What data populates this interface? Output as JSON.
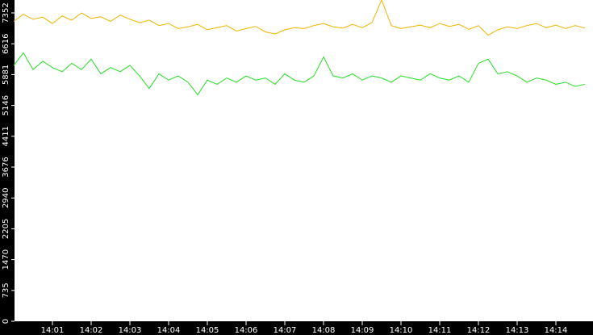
{
  "chart_data": {
    "type": "line",
    "categories": [
      null,
      null,
      null,
      null,
      "14:01",
      null,
      null,
      null,
      "14:02",
      null,
      null,
      null,
      "14:03",
      null,
      null,
      null,
      "14:04",
      null,
      null,
      null,
      "14:05",
      null,
      null,
      null,
      "14:06",
      null,
      null,
      null,
      "14:07",
      null,
      null,
      null,
      "14:08",
      null,
      null,
      null,
      "14:09",
      null,
      null,
      null,
      "14:10",
      null,
      null,
      null,
      "14:11",
      null,
      null,
      null,
      "14:12",
      null,
      null,
      null,
      "14:13",
      null,
      null,
      null,
      "14:14",
      null,
      null,
      null
    ],
    "series": [
      {
        "color": "#f0b400",
        "values": [
          7150,
          7320,
          7200,
          7250,
          7100,
          7280,
          7180,
          7350,
          7220,
          7260,
          7150,
          7300,
          7200,
          7120,
          7180,
          7050,
          7100,
          6980,
          7020,
          7080,
          6950,
          7000,
          7050,
          6920,
          6980,
          7030,
          6900,
          6850,
          6950,
          7000,
          6980,
          7050,
          7100,
          7020,
          6990,
          7080,
          7000,
          7120,
          7660,
          7050,
          6980,
          7020,
          7060,
          7000,
          7100,
          7030,
          7080,
          6960,
          7050,
          6820,
          6950,
          7020,
          6980,
          7050,
          7100,
          7000,
          7060,
          6980,
          7050,
          6990
        ]
      },
      {
        "color": "#22dd22",
        "values": [
          6100,
          6400,
          6000,
          6200,
          6050,
          5950,
          6150,
          6000,
          6250,
          5900,
          6050,
          5950,
          6100,
          5850,
          5550,
          5900,
          5750,
          5850,
          5700,
          5400,
          5750,
          5650,
          5800,
          5700,
          5850,
          5750,
          5800,
          5650,
          5900,
          5750,
          5700,
          5850,
          6300,
          5850,
          5800,
          5900,
          5750,
          5850,
          5800,
          5700,
          5850,
          5800,
          5750,
          5900,
          5800,
          5750,
          5850,
          5700,
          6150,
          6250,
          5900,
          5950,
          5850,
          5700,
          5800,
          5750,
          5650,
          5700,
          5600,
          5650
        ]
      }
    ],
    "ylim": [
      0,
      7660
    ],
    "yticks": [
      0,
      735,
      1470,
      2205,
      2940,
      3676,
      4411,
      5146,
      5881,
      6616,
      7352
    ]
  }
}
